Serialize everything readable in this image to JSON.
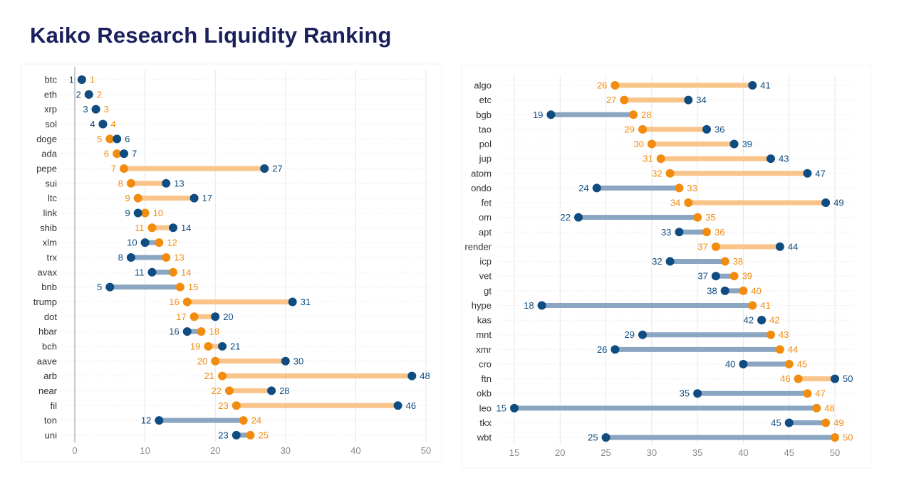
{
  "title": "Kaiko Research Liquidity Ranking",
  "colors": {
    "blue": "#0f4c81",
    "orange": "#f28c0f",
    "blue_line": "#8aa6c3",
    "orange_line": "#f9c48a",
    "grid": "#e6e6e6",
    "text": "#333333"
  },
  "chart_data": [
    {
      "type": "dumbbell",
      "xlim": [
        0,
        50
      ],
      "xticks": [
        0,
        10,
        20,
        30,
        40,
        50
      ],
      "grid": true,
      "categories": [
        "btc",
        "eth",
        "xrp",
        "sol",
        "doge",
        "ada",
        "pepe",
        "sui",
        "ltc",
        "link",
        "shib",
        "xlm",
        "trx",
        "avax",
        "bnb",
        "trump",
        "dot",
        "hbar",
        "bch",
        "aave",
        "arb",
        "near",
        "fil",
        "ton",
        "uni"
      ],
      "series": [
        {
          "color": "blue",
          "values": [
            1,
            2,
            3,
            4,
            6,
            7,
            27,
            13,
            17,
            9,
            14,
            10,
            8,
            11,
            5,
            31,
            20,
            16,
            21,
            30,
            48,
            28,
            46,
            12,
            23
          ]
        },
        {
          "color": "orange",
          "values": [
            1,
            2,
            3,
            4,
            5,
            6,
            7,
            8,
            9,
            10,
            11,
            12,
            13,
            14,
            15,
            16,
            17,
            18,
            19,
            20,
            21,
            22,
            23,
            24,
            25
          ]
        }
      ]
    },
    {
      "type": "dumbbell",
      "xlim": [
        15,
        50
      ],
      "xticks": [
        15,
        20,
        25,
        30,
        35,
        40,
        45,
        50
      ],
      "grid": true,
      "categories": [
        "algo",
        "etc",
        "bgb",
        "tao",
        "pol",
        "jup",
        "atom",
        "ondo",
        "fet",
        "om",
        "apt",
        "render",
        "icp",
        "vet",
        "gt",
        "hype",
        "kas",
        "mnt",
        "xmr",
        "cro",
        "ftn",
        "okb",
        "leo",
        "tkx",
        "wbt"
      ],
      "series": [
        {
          "color": "blue",
          "values": [
            41,
            34,
            19,
            36,
            39,
            43,
            47,
            24,
            49,
            22,
            33,
            44,
            32,
            37,
            38,
            18,
            42,
            29,
            26,
            40,
            50,
            35,
            15,
            45,
            25
          ]
        },
        {
          "color": "orange",
          "values": [
            26,
            27,
            28,
            29,
            30,
            31,
            32,
            33,
            34,
            35,
            36,
            37,
            38,
            39,
            40,
            41,
            42,
            43,
            44,
            45,
            46,
            47,
            48,
            49,
            50
          ]
        }
      ]
    }
  ]
}
